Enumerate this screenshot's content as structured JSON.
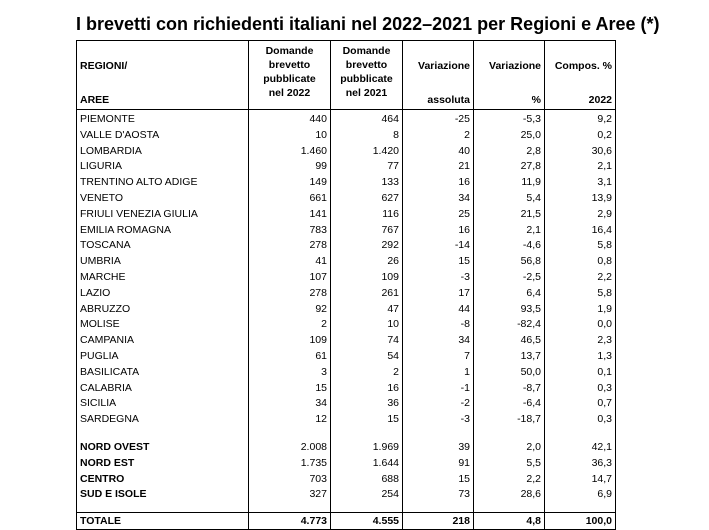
{
  "title": "I brevetti con richiedenti italiani nel 2022–2021 per Regioni e Aree (*)",
  "headers": {
    "region_top": "REGIONI/",
    "region_bottom": "AREE",
    "col1": [
      "Domande",
      "brevetto",
      "pubblicate",
      "nel 2022"
    ],
    "col2": [
      "Domande",
      "brevetto",
      "pubblicate",
      "nel 2021"
    ],
    "col3_top": "Variazione",
    "col3_bottom": "assoluta",
    "col4_top": "Variazione",
    "col4_bottom": "%",
    "col5_top": "Compos. %",
    "col5_bottom": "2022"
  },
  "regions": [
    {
      "name": "PIEMONTE",
      "y2022": "440",
      "y2021": "464",
      "var_abs": "-25",
      "var_pct": "-5,3",
      "comp": "9,2"
    },
    {
      "name": "VALLE D'AOSTA",
      "y2022": "10",
      "y2021": "8",
      "var_abs": "2",
      "var_pct": "25,0",
      "comp": "0,2"
    },
    {
      "name": "LOMBARDIA",
      "y2022": "1.460",
      "y2021": "1.420",
      "var_abs": "40",
      "var_pct": "2,8",
      "comp": "30,6"
    },
    {
      "name": "LIGURIA",
      "y2022": "99",
      "y2021": "77",
      "var_abs": "21",
      "var_pct": "27,8",
      "comp": "2,1"
    },
    {
      "name": "TRENTINO ALTO ADIGE",
      "y2022": "149",
      "y2021": "133",
      "var_abs": "16",
      "var_pct": "11,9",
      "comp": "3,1"
    },
    {
      "name": "VENETO",
      "y2022": "661",
      "y2021": "627",
      "var_abs": "34",
      "var_pct": "5,4",
      "comp": "13,9"
    },
    {
      "name": "FRIULI VENEZIA GIULIA",
      "y2022": "141",
      "y2021": "116",
      "var_abs": "25",
      "var_pct": "21,5",
      "comp": "2,9"
    },
    {
      "name": "EMILIA ROMAGNA",
      "y2022": "783",
      "y2021": "767",
      "var_abs": "16",
      "var_pct": "2,1",
      "comp": "16,4"
    },
    {
      "name": "TOSCANA",
      "y2022": "278",
      "y2021": "292",
      "var_abs": "-14",
      "var_pct": "-4,6",
      "comp": "5,8"
    },
    {
      "name": "UMBRIA",
      "y2022": "41",
      "y2021": "26",
      "var_abs": "15",
      "var_pct": "56,8",
      "comp": "0,8"
    },
    {
      "name": "MARCHE",
      "y2022": "107",
      "y2021": "109",
      "var_abs": "-3",
      "var_pct": "-2,5",
      "comp": "2,2"
    },
    {
      "name": "LAZIO",
      "y2022": "278",
      "y2021": "261",
      "var_abs": "17",
      "var_pct": "6,4",
      "comp": "5,8"
    },
    {
      "name": "ABRUZZO",
      "y2022": "92",
      "y2021": "47",
      "var_abs": "44",
      "var_pct": "93,5",
      "comp": "1,9"
    },
    {
      "name": "MOLISE",
      "y2022": "2",
      "y2021": "10",
      "var_abs": "-8",
      "var_pct": "-82,4",
      "comp": "0,0"
    },
    {
      "name": "CAMPANIA",
      "y2022": "109",
      "y2021": "74",
      "var_abs": "34",
      "var_pct": "46,5",
      "comp": "2,3"
    },
    {
      "name": "PUGLIA",
      "y2022": "61",
      "y2021": "54",
      "var_abs": "7",
      "var_pct": "13,7",
      "comp": "1,3"
    },
    {
      "name": "BASILICATA",
      "y2022": "3",
      "y2021": "2",
      "var_abs": "1",
      "var_pct": "50,0",
      "comp": "0,1"
    },
    {
      "name": "CALABRIA",
      "y2022": "15",
      "y2021": "16",
      "var_abs": "-1",
      "var_pct": "-8,7",
      "comp": "0,3"
    },
    {
      "name": "SICILIA",
      "y2022": "34",
      "y2021": "36",
      "var_abs": "-2",
      "var_pct": "-6,4",
      "comp": "0,7"
    },
    {
      "name": "SARDEGNA",
      "y2022": "12",
      "y2021": "15",
      "var_abs": "-3",
      "var_pct": "-18,7",
      "comp": "0,3"
    }
  ],
  "areas": [
    {
      "name": "NORD OVEST",
      "y2022": "2.008",
      "y2021": "1.969",
      "var_abs": "39",
      "var_pct": "2,0",
      "comp": "42,1"
    },
    {
      "name": "NORD EST",
      "y2022": "1.735",
      "y2021": "1.644",
      "var_abs": "91",
      "var_pct": "5,5",
      "comp": "36,3"
    },
    {
      "name": "CENTRO",
      "y2022": "703",
      "y2021": "688",
      "var_abs": "15",
      "var_pct": "2,2",
      "comp": "14,7"
    },
    {
      "name": "SUD E ISOLE",
      "y2022": "327",
      "y2021": "254",
      "var_abs": "73",
      "var_pct": "28,6",
      "comp": "6,9"
    }
  ],
  "total": {
    "name": "TOTALE",
    "y2022": "4.773",
    "y2021": "4.555",
    "var_abs": "218",
    "var_pct": "4,8",
    "comp": "100,0"
  }
}
